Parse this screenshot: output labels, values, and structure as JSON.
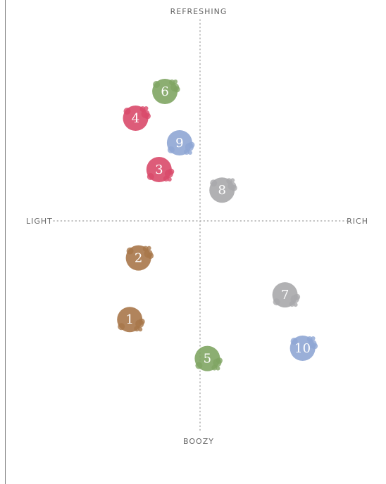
{
  "chart_data": {
    "type": "scatter",
    "title": "",
    "axes": {
      "top": "REFRESHING",
      "bottom": "BOOZY",
      "left": "LIGHT",
      "right": "RICH"
    },
    "xlim": [
      -10,
      10
    ],
    "ylim": [
      -10,
      10
    ],
    "grid": false,
    "colors": {
      "green": "#7fa563",
      "red": "#d94a6a",
      "blue": "#8fa6d4",
      "gray": "#a9a9ab",
      "brown": "#a8774a"
    },
    "points": [
      {
        "label": "1",
        "x": -4.8,
        "y": -4.8,
        "color": "brown"
      },
      {
        "label": "2",
        "x": -4.2,
        "y": -1.8,
        "color": "brown"
      },
      {
        "label": "3",
        "x": -2.8,
        "y": 2.5,
        "color": "red"
      },
      {
        "label": "4",
        "x": -4.4,
        "y": 5.0,
        "color": "red"
      },
      {
        "label": "5",
        "x": 0.5,
        "y": -6.7,
        "color": "green"
      },
      {
        "label": "6",
        "x": -2.4,
        "y": 6.3,
        "color": "green"
      },
      {
        "label": "7",
        "x": 5.8,
        "y": -3.6,
        "color": "gray"
      },
      {
        "label": "8",
        "x": 1.5,
        "y": 1.5,
        "color": "gray"
      },
      {
        "label": "9",
        "x": -1.4,
        "y": 3.8,
        "color": "blue"
      },
      {
        "label": "10",
        "x": 7.0,
        "y": -6.2,
        "color": "blue"
      }
    ]
  }
}
